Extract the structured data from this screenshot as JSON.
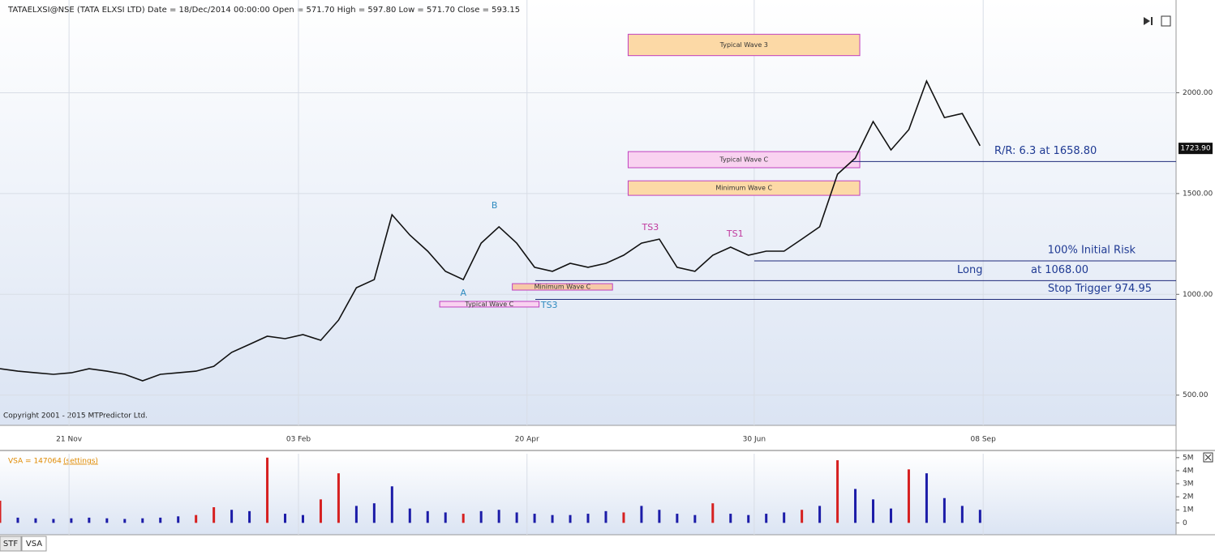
{
  "chart_data": [
    {
      "type": "line",
      "title": "TATAELXSI@NSE (TATA ELXSI LTD) Date = 18/Dec/2014 00:00:00 Open = 571.70 High = 597.80 Low = 571.70 Close = 593.15",
      "x": [
        0,
        4,
        8,
        12,
        16,
        20,
        24,
        28,
        32,
        36,
        40,
        44,
        48,
        52,
        56,
        60,
        64,
        68,
        72,
        76,
        80,
        84,
        88,
        92,
        96,
        100,
        104,
        108,
        112,
        116,
        120,
        124,
        128,
        132,
        136,
        140,
        144,
        148,
        152,
        156,
        160,
        164,
        168,
        172,
        176,
        180,
        184,
        188,
        192,
        196,
        200,
        204,
        208,
        212,
        216,
        220
      ],
      "values": [
        631,
        619,
        611,
        603,
        611,
        631,
        619,
        603,
        571,
        603,
        611,
        619,
        643,
        712,
        752,
        792,
        780,
        800,
        772,
        872,
        1033,
        1073,
        1395,
        1294,
        1214,
        1114,
        1073,
        1254,
        1335,
        1254,
        1134,
        1114,
        1154,
        1134,
        1154,
        1194,
        1254,
        1274,
        1134,
        1114,
        1194,
        1234,
        1194,
        1214,
        1214,
        1274,
        1335,
        1596,
        1676,
        1857,
        1716,
        1817,
        2058,
        1877,
        1897,
        1737
      ],
      "color": "#111111",
      "xlim": [
        0,
        264
      ],
      "xticks": [
        {
          "value": 15.5,
          "label": "21 Nov"
        },
        {
          "value": 67,
          "label": "03 Feb"
        },
        {
          "value": 118.3,
          "label": "20 Apr"
        },
        {
          "value": 169.3,
          "label": "30 Jun"
        },
        {
          "value": 220.7,
          "label": "08 Sep"
        }
      ],
      "ylim": [
        350,
        2460
      ],
      "yticks": [
        {
          "value": 500,
          "label": "500.00"
        },
        {
          "value": 1000,
          "label": "1000.00"
        },
        {
          "value": 1500,
          "label": "1500.00"
        },
        {
          "value": 2000,
          "label": "2000.00"
        }
      ],
      "grid": true,
      "last_price": {
        "value": 1723.9,
        "label": "1723.90"
      },
      "levels": [
        {
          "value": 1658.8,
          "labels": [
            "R/R: 6.3 at 1658.80"
          ]
        },
        {
          "value": 1166,
          "labels": [
            "100% Initial Risk"
          ]
        },
        {
          "value": 1068,
          "labels": [
            "Long",
            "at 1068.00"
          ]
        },
        {
          "value": 974.95,
          "labels": [
            "Stop Trigger 974.95"
          ]
        }
      ],
      "boxes": [
        {
          "label": "Typical Wave 3",
          "x": [
            141,
            193
          ],
          "y": [
            2184,
            2290
          ],
          "color": "#fcd9a6"
        },
        {
          "label": "Typical Wave C",
          "x": [
            141,
            193
          ],
          "y": [
            1628,
            1708
          ],
          "color": "#f9d2f0"
        },
        {
          "label": "Minimum Wave C",
          "x": [
            141,
            193
          ],
          "y": [
            1491,
            1563
          ],
          "color": "#fcd9a6"
        },
        {
          "label": "Minimum Wave C",
          "x": [
            115,
            137.5
          ],
          "y": [
            1021,
            1053
          ],
          "color": "#f6c9a8"
        },
        {
          "label": "Typical Wave C",
          "x": [
            98.7,
            121
          ],
          "y": [
            937,
            965
          ],
          "color": "#f9d2f0"
        }
      ],
      "annotations": [
        {
          "text": "A",
          "x": 104,
          "y": 1005,
          "color": "#2e8bc0"
        },
        {
          "text": "B",
          "x": 111,
          "y": 1440,
          "color": "#2e8bc0"
        },
        {
          "text": "TS3",
          "x": 123.3,
          "y": 945,
          "color": "#2e8bc0"
        },
        {
          "text": "TS3",
          "x": 146,
          "y": 1330,
          "color": "#c0399e"
        },
        {
          "text": "TS1",
          "x": 165,
          "y": 1298,
          "color": "#c0399e"
        }
      ],
      "copyright": "Copyright 2001 - 2015 MTPredictor Ltd."
    },
    {
      "type": "bar",
      "title": "VSA = 147064",
      "link": "(settings)",
      "values": [
        1700000,
        400000,
        350000,
        300000,
        350000,
        400000,
        350000,
        300000,
        350000,
        400000,
        500000,
        600000,
        1200000,
        1000000,
        900000,
        5000000,
        700000,
        600000,
        1800000,
        3800000,
        1300000,
        1500000,
        2800000,
        1100000,
        900000,
        800000,
        700000,
        900000,
        1000000,
        800000,
        700000,
        600000,
        600000,
        700000,
        900000,
        800000,
        1300000,
        1000000,
        700000,
        600000,
        1500000,
        700000,
        600000,
        700000,
        800000,
        1000000,
        1300000,
        4800000,
        2600000,
        1800000,
        1100000,
        4100000,
        3800000,
        1900000,
        1300000,
        1000000
      ],
      "colors": [
        "#d62020",
        "#1c1ca8",
        "#1c1ca8",
        "#1c1ca8",
        "#1c1ca8",
        "#1c1ca8",
        "#1c1ca8",
        "#1c1ca8",
        "#1c1ca8",
        "#1c1ca8",
        "#1c1ca8",
        "#d62020",
        "#d62020",
        "#1c1ca8",
        "#1c1ca8",
        "#d62020",
        "#1c1ca8",
        "#1c1ca8",
        "#d62020",
        "#d62020",
        "#1c1ca8",
        "#1c1ca8",
        "#1c1ca8",
        "#1c1ca8",
        "#1c1ca8",
        "#1c1ca8",
        "#d62020",
        "#1c1ca8",
        "#1c1ca8",
        "#1c1ca8",
        "#1c1ca8",
        "#1c1ca8",
        "#1c1ca8",
        "#1c1ca8",
        "#1c1ca8",
        "#d62020",
        "#1c1ca8",
        "#1c1ca8",
        "#1c1ca8",
        "#1c1ca8",
        "#d62020",
        "#1c1ca8",
        "#1c1ca8",
        "#1c1ca8",
        "#1c1ca8",
        "#d62020",
        "#1c1ca8",
        "#d62020",
        "#1c1ca8",
        "#1c1ca8",
        "#1c1ca8",
        "#d62020",
        "#1c1ca8",
        "#1c1ca8",
        "#1c1ca8",
        "#1c1ca8"
      ],
      "ylim": [
        -600000,
        5300000
      ],
      "yticks": [
        0,
        {
          "value": 1000000,
          "label": "1M"
        },
        {
          "value": 2000000,
          "label": "2M"
        },
        {
          "value": 3000000,
          "label": "3M"
        },
        {
          "value": 4000000,
          "label": "4M"
        },
        {
          "value": 5000000,
          "label": "5M"
        }
      ]
    }
  ],
  "tabs": [
    "STF",
    "VSA"
  ]
}
